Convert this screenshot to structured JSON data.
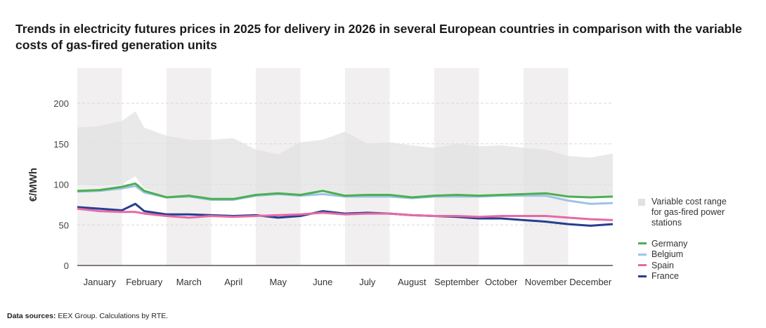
{
  "title": "Trends in electricity futures prices in 2025 for delivery in 2026 in several European countries in comparison with the variable costs of gas-fired generation units",
  "source": {
    "label": "Data sources:",
    "text": " EEX Group. Calculations by RTE."
  },
  "chart_data": {
    "type": "line",
    "title": "Trends in electricity futures prices in 2025 for delivery in 2026 in several European countries in comparison with the variable costs of gas-fired generation units",
    "ylabel": "€/MWh",
    "xlabel": "",
    "ylim": [
      0,
      240
    ],
    "yticks": [
      0,
      50,
      100,
      150,
      200
    ],
    "grid": true,
    "legend_position": "right",
    "months": [
      "January",
      "February",
      "March",
      "April",
      "May",
      "June",
      "July",
      "August",
      "September",
      "October",
      "November",
      "December"
    ],
    "x_month_index": [
      0,
      0.5,
      1,
      1.3,
      1.5,
      2,
      2.5,
      3,
      3.5,
      4,
      4.5,
      5,
      5.5,
      6,
      6.5,
      7,
      7.5,
      8,
      8.5,
      9,
      9.5,
      10,
      10.5,
      11,
      11.5,
      12
    ],
    "range": {
      "name": "Variable cost range for gas-fired power stations",
      "color": "#e2e1e2",
      "low": [
        100,
        98,
        100,
        110,
        95,
        85,
        87,
        80,
        80,
        85,
        86,
        87,
        92,
        86,
        87,
        87,
        84,
        86,
        87,
        86,
        87,
        88,
        89,
        85,
        84,
        85
      ],
      "high": [
        170,
        172,
        178,
        190,
        170,
        160,
        155,
        155,
        157,
        143,
        137,
        152,
        155,
        165,
        150,
        152,
        148,
        145,
        150,
        147,
        148,
        145,
        143,
        135,
        133,
        138
      ]
    },
    "series": [
      {
        "name": "Germany",
        "color": "#4caf50",
        "values": [
          92,
          93,
          97,
          101,
          92,
          84,
          86,
          82,
          82,
          87,
          89,
          87,
          92,
          86,
          87,
          87,
          84,
          86,
          87,
          86,
          87,
          88,
          89,
          85,
          84,
          85
        ]
      },
      {
        "name": "Belgium",
        "color": "#9ec3e6",
        "values": [
          91,
          92,
          95,
          98,
          90,
          84,
          85,
          81,
          81,
          86,
          88,
          86,
          88,
          85,
          85,
          85,
          83,
          85,
          85,
          85,
          86,
          86,
          86,
          80,
          76,
          77
        ]
      },
      {
        "name": "Spain",
        "color": "#e46aa6",
        "values": [
          70,
          67,
          66,
          66,
          64,
          61,
          59,
          61,
          60,
          61,
          62,
          63,
          65,
          63,
          64,
          64,
          62,
          61,
          61,
          60,
          61,
          61,
          61,
          59,
          57,
          56
        ]
      },
      {
        "name": "France",
        "color": "#263e8f",
        "values": [
          72,
          70,
          68,
          76,
          67,
          63,
          63,
          62,
          61,
          62,
          59,
          61,
          67,
          64,
          65,
          64,
          62,
          61,
          60,
          58,
          58,
          56,
          54,
          51,
          49,
          51
        ]
      }
    ],
    "shaded_month_bands": [
      "January",
      "March",
      "May",
      "July",
      "September",
      "November"
    ]
  }
}
